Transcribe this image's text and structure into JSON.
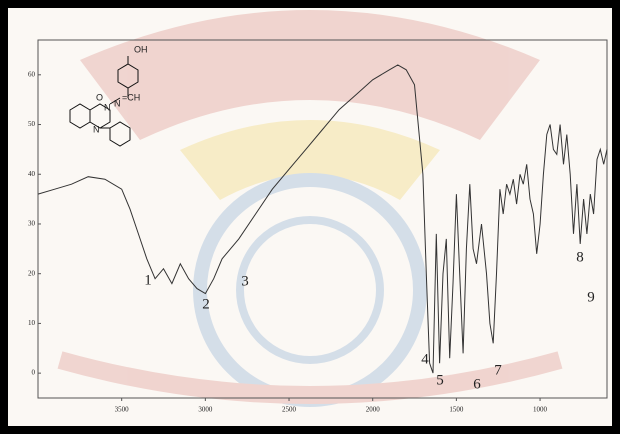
{
  "chart_data": {
    "type": "line",
    "x": [
      4000,
      3900,
      3800,
      3700,
      3600,
      3500,
      3450,
      3400,
      3350,
      3300,
      3250,
      3200,
      3150,
      3100,
      3050,
      3000,
      2950,
      2900,
      2850,
      2800,
      2700,
      2600,
      2500,
      2400,
      2300,
      2200,
      2100,
      2000,
      1900,
      1850,
      1800,
      1750,
      1700,
      1680,
      1660,
      1640,
      1620,
      1600,
      1580,
      1560,
      1540,
      1520,
      1500,
      1480,
      1460,
      1440,
      1420,
      1400,
      1380,
      1350,
      1320,
      1300,
      1280,
      1260,
      1240,
      1220,
      1200,
      1180,
      1160,
      1140,
      1120,
      1100,
      1080,
      1060,
      1040,
      1020,
      1000,
      980,
      960,
      940,
      920,
      900,
      880,
      860,
      840,
      820,
      800,
      780,
      760,
      740,
      720,
      700,
      680,
      660,
      640,
      620,
      600
    ],
    "series": [
      {
        "color": "#333333",
        "values": [
          36,
          37,
          38,
          39.5,
          39,
          37,
          33,
          28,
          23,
          19,
          21,
          18,
          22,
          19,
          17,
          16,
          19,
          23,
          25,
          27,
          32,
          37,
          41,
          45,
          49,
          53,
          56,
          59,
          61,
          62,
          61,
          58,
          40,
          20,
          2,
          0,
          28,
          2,
          20,
          27,
          3,
          18,
          36,
          20,
          4,
          25,
          38,
          25,
          22,
          30,
          20,
          10,
          6,
          20,
          37,
          32,
          38,
          36,
          39,
          34,
          40,
          38,
          42,
          35,
          32,
          24,
          30,
          40,
          48,
          50,
          45,
          44,
          50,
          42,
          48,
          40,
          28,
          38,
          26,
          35,
          28,
          36,
          32,
          43,
          45,
          42,
          45
        ]
      }
    ],
    "xlim": [
      4000,
      600
    ],
    "ylim": [
      -5,
      67
    ],
    "xticks": [
      3500,
      3000,
      2500,
      2000,
      1500,
      1000
    ],
    "yticks": [
      0,
      10,
      20,
      30,
      40,
      50,
      60
    ],
    "annotations": [
      "1",
      "2",
      "3",
      "4",
      "5",
      "6",
      "7",
      "8",
      "9"
    ],
    "structure_labels": [
      "OH",
      "O",
      "N",
      "N",
      "N",
      "=CH"
    ]
  }
}
